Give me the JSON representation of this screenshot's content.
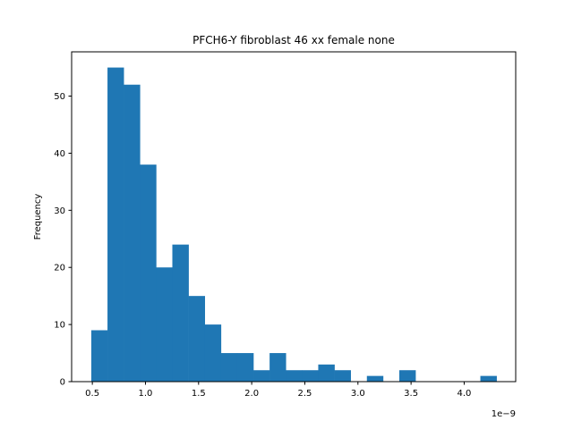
{
  "chart_data": {
    "type": "histogram",
    "title": "PFCH6-Y fibroblast 46 xx female none",
    "xlabel": "",
    "ylabel": "Frequency",
    "x_offset_label": "1e−9",
    "bin_start": 0.49,
    "bin_width": 0.1526,
    "counts": [
      9,
      55,
      52,
      38,
      20,
      24,
      15,
      10,
      5,
      5,
      2,
      5,
      2,
      2,
      3,
      2,
      0,
      1,
      0,
      2,
      0,
      0,
      0,
      0,
      1
    ],
    "xlim": [
      0.305,
      4.485
    ],
    "ylim": [
      0,
      57.75
    ],
    "xticks": [
      0.5,
      1.0,
      1.5,
      2.0,
      2.5,
      3.0,
      3.5,
      4.0
    ],
    "xtick_labels": [
      "0.5",
      "1.0",
      "1.5",
      "2.0",
      "2.5",
      "3.0",
      "3.5",
      "4.0"
    ],
    "yticks": [
      0,
      10,
      20,
      30,
      40,
      50
    ],
    "ytick_labels": [
      "0",
      "10",
      "20",
      "30",
      "40",
      "50"
    ],
    "bar_color": "#1f77b4",
    "grid": false,
    "legend": "none"
  }
}
